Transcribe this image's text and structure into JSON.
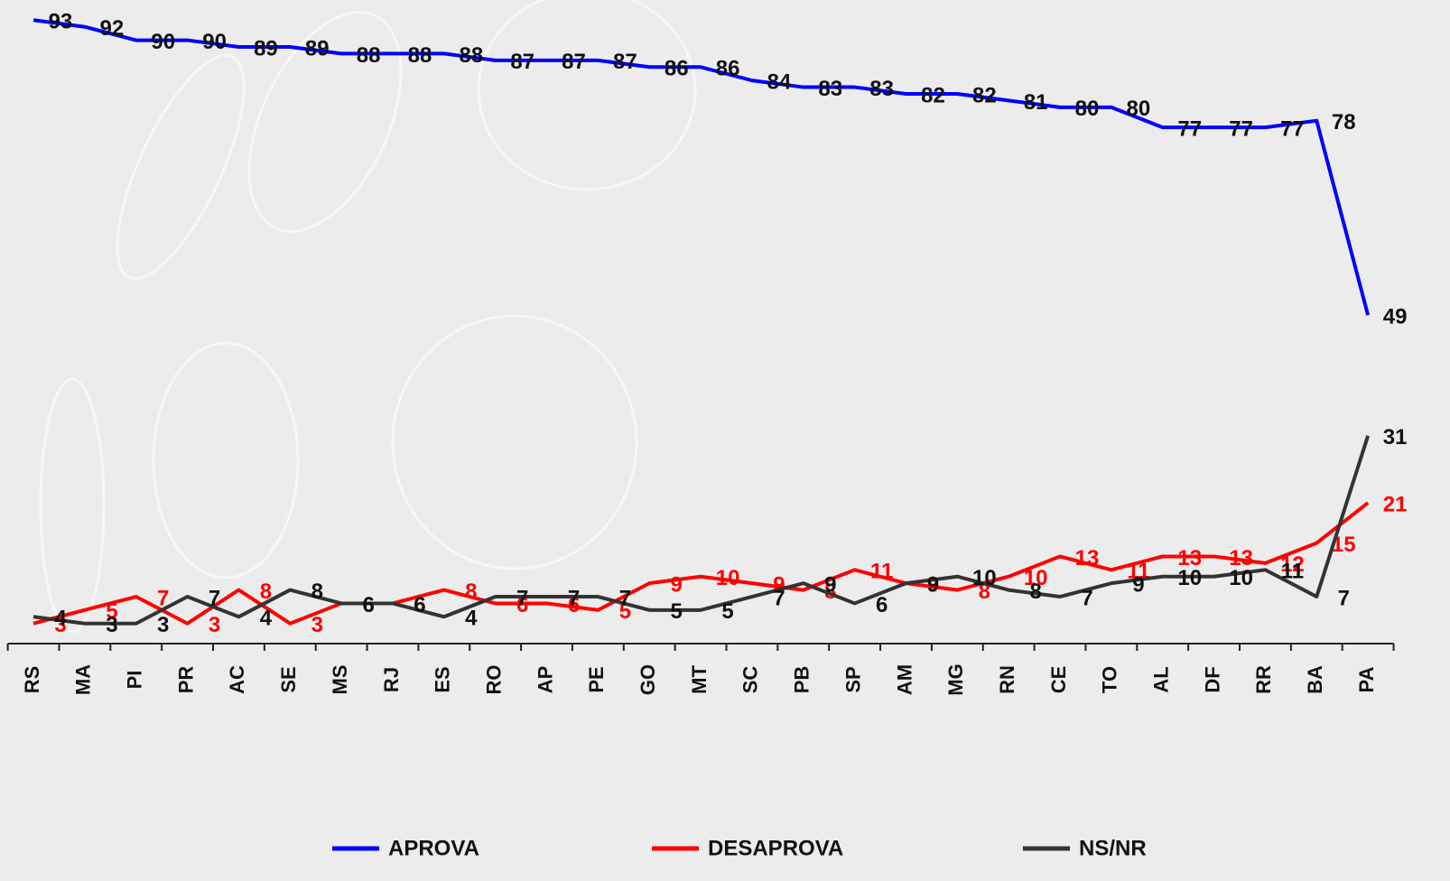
{
  "chart_data": {
    "type": "line",
    "categories": [
      "RS",
      "MA",
      "PI",
      "PR",
      "AC",
      "SE",
      "MS",
      "RJ",
      "ES",
      "RO",
      "AP",
      "PE",
      "GO",
      "MT",
      "SC",
      "PB",
      "SP",
      "AM",
      "MG",
      "RN",
      "CE",
      "TO",
      "AL",
      "DF",
      "RR",
      "BA",
      "PA"
    ],
    "series": [
      {
        "name": "APROVA",
        "color": "#0000ff",
        "values": [
          93,
          92,
          90,
          90,
          89,
          89,
          88,
          88,
          88,
          87,
          87,
          87,
          86,
          86,
          84,
          83,
          83,
          82,
          82,
          81,
          80,
          80,
          77,
          77,
          77,
          78,
          49
        ]
      },
      {
        "name": "DESAPROVA",
        "color": "#ff0000",
        "values": [
          3,
          5,
          7,
          3,
          8,
          3,
          6,
          6,
          8,
          6,
          6,
          5,
          9,
          10,
          9,
          8,
          11,
          9,
          8,
          10,
          13,
          11,
          13,
          13,
          12,
          15,
          21
        ]
      },
      {
        "name": "NS/NR",
        "color": "#333333",
        "values": [
          4,
          3,
          3,
          7,
          4,
          8,
          6,
          6,
          4,
          7,
          7,
          7,
          5,
          5,
          7,
          9,
          6,
          9,
          10,
          8,
          7,
          9,
          10,
          10,
          11,
          7,
          31
        ]
      }
    ],
    "ylim": [
      0,
      96
    ]
  }
}
